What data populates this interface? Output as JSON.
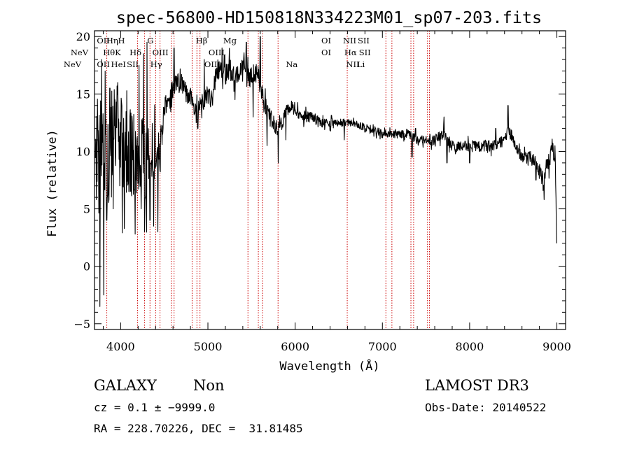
{
  "chart_data": {
    "type": "line",
    "title": "spec-56800-HD150818N334223M01_sp07-203.fits",
    "xlabel": "Wavelength (Å)",
    "ylabel": "Flux (relative)",
    "xlim": [
      3700,
      9100
    ],
    "ylim": [
      -5.5,
      20.5
    ],
    "xticks": [
      "4000",
      "5000",
      "6000",
      "7000",
      "8000",
      "9000"
    ],
    "yticks": [
      "−5",
      "0",
      "5",
      "10",
      "15",
      "20"
    ],
    "grid": false,
    "line_color": "#000000",
    "marker_color": "#cc0000",
    "lines": [
      {
        "label": "NeV",
        "wavelength": 3426,
        "row": 1
      },
      {
        "label": "NeV",
        "wavelength": 3346,
        "row": 2
      },
      {
        "label": "OII",
        "wavelength": 3727,
        "row": 0
      },
      {
        "label": "Hη",
        "wavelength": 3835,
        "row": 0
      },
      {
        "label": "H",
        "wavelength": 3969,
        "row": 0
      },
      {
        "label": "Hθ",
        "wavelength": 3798,
        "row": 1
      },
      {
        "label": "K",
        "wavelength": 3934,
        "row": 1
      },
      {
        "label": "Hδ",
        "wavelength": 4102,
        "row": 1
      },
      {
        "label": "OII",
        "wavelength": 3727,
        "row": 2
      },
      {
        "label": "HeI",
        "wavelength": 3889,
        "row": 2
      },
      {
        "label": "SII",
        "wavelength": 4070,
        "row": 2
      },
      {
        "label": "G",
        "wavelength": 4304,
        "row": 0
      },
      {
        "label": "OIII",
        "wavelength": 4363,
        "row": 1
      },
      {
        "label": "Hγ",
        "wavelength": 4340,
        "row": 2
      },
      {
        "label": "Hβ",
        "wavelength": 4861,
        "row": 0
      },
      {
        "label": "Mg",
        "wavelength": 5175,
        "row": 0
      },
      {
        "label": "OIII",
        "wavelength": 5007,
        "row": 1
      },
      {
        "label": "OIII",
        "wavelength": 4959,
        "row": 2
      },
      {
        "label": "Na",
        "wavelength": 5893,
        "row": 2
      },
      {
        "label": "OI",
        "wavelength": 6300,
        "row": 0
      },
      {
        "label": "NII",
        "wavelength": 6548,
        "row": 0
      },
      {
        "label": "SII",
        "wavelength": 6717,
        "row": 0
      },
      {
        "label": "OI",
        "wavelength": 6300,
        "row": 1
      },
      {
        "label": "Hα",
        "wavelength": 6563,
        "row": 1
      },
      {
        "label": "SII",
        "wavelength": 6731,
        "row": 1
      },
      {
        "label": "NII",
        "wavelength": 6584,
        "row": 2
      },
      {
        "label": "Li",
        "wavelength": 6708,
        "row": 2
      }
    ],
    "marker_wavelengths": [
      3841,
      4193,
      4273,
      4336,
      4402,
      4451,
      4581,
      4612,
      4819,
      4874,
      4909,
      5459,
      5578,
      5626,
      5804,
      6597,
      7040,
      7109,
      7327,
      7358,
      7517,
      7540
    ],
    "anchors": [
      [
        3710,
        7.0
      ],
      [
        3740,
        12.0
      ],
      [
        3790,
        10.0
      ],
      [
        3850,
        9.0
      ],
      [
        3900,
        11.0
      ],
      [
        3950,
        12.5
      ],
      [
        4000,
        11.0
      ],
      [
        4050,
        9.5
      ],
      [
        4100,
        10.5
      ],
      [
        4150,
        10.0
      ],
      [
        4200,
        10.0
      ],
      [
        4250,
        9.5
      ],
      [
        4300,
        9.0
      ],
      [
        4350,
        9.5
      ],
      [
        4400,
        10.0
      ],
      [
        4450,
        9.5
      ],
      [
        4500,
        14.0
      ],
      [
        4550,
        14.0
      ],
      [
        4600,
        15.5
      ],
      [
        4650,
        16.0
      ],
      [
        4700,
        16.0
      ],
      [
        4750,
        15.0
      ],
      [
        4800,
        15.0
      ],
      [
        4850,
        13.5
      ],
      [
        4900,
        14.0
      ],
      [
        4950,
        14.5
      ],
      [
        5000,
        15.0
      ],
      [
        5050,
        14.5
      ],
      [
        5100,
        17.0
      ],
      [
        5150,
        17.5
      ],
      [
        5200,
        16.5
      ],
      [
        5250,
        17.5
      ],
      [
        5300,
        16.5
      ],
      [
        5350,
        17.0
      ],
      [
        5400,
        17.0
      ],
      [
        5450,
        16.5
      ],
      [
        5500,
        16.5
      ],
      [
        5550,
        17.0
      ],
      [
        5600,
        16.0
      ],
      [
        5650,
        14.0
      ],
      [
        5700,
        13.5
      ],
      [
        5750,
        12.5
      ],
      [
        5800,
        12.0
      ],
      [
        5850,
        12.5
      ],
      [
        5900,
        13.5
      ],
      [
        5950,
        14.0
      ],
      [
        6000,
        13.5
      ],
      [
        6100,
        13.0
      ],
      [
        6200,
        13.0
      ],
      [
        6300,
        12.5
      ],
      [
        6400,
        12.5
      ],
      [
        6500,
        12.5
      ],
      [
        6600,
        12.5
      ],
      [
        6700,
        12.5
      ],
      [
        6800,
        12.0
      ],
      [
        6900,
        12.0
      ],
      [
        7000,
        11.5
      ],
      [
        7100,
        11.5
      ],
      [
        7200,
        11.5
      ],
      [
        7300,
        11.5
      ],
      [
        7400,
        11.0
      ],
      [
        7500,
        11.0
      ],
      [
        7600,
        11.0
      ],
      [
        7700,
        11.5
      ],
      [
        7800,
        10.5
      ],
      [
        7900,
        10.5
      ],
      [
        8000,
        10.5
      ],
      [
        8100,
        10.5
      ],
      [
        8200,
        10.5
      ],
      [
        8300,
        10.5
      ],
      [
        8400,
        11.0
      ],
      [
        8450,
        12.0
      ],
      [
        8500,
        11.0
      ],
      [
        8550,
        10.0
      ],
      [
        8600,
        9.5
      ],
      [
        8700,
        9.5
      ],
      [
        8800,
        8.5
      ],
      [
        8850,
        7.0
      ],
      [
        8900,
        9.0
      ],
      [
        8950,
        10.0
      ],
      [
        8980,
        10.0
      ],
      [
        9000,
        1.5
      ]
    ],
    "features": [
      [
        3762,
        -3.5
      ],
      [
        3781,
        18.0
      ],
      [
        3805,
        -2.5
      ],
      [
        3822,
        17.0
      ],
      [
        3840,
        4.0
      ],
      [
        3876,
        15.5
      ],
      [
        3915,
        5.0
      ],
      [
        3935,
        14.5
      ],
      [
        3967,
        16.0
      ],
      [
        3990,
        7.0
      ],
      [
        4096,
        6.5
      ],
      [
        4210,
        17.5
      ],
      [
        4233,
        5.0
      ],
      [
        4262,
        18.5
      ],
      [
        4282,
        6.0
      ],
      [
        4301,
        19.5
      ],
      [
        4336,
        4.0
      ],
      [
        4378,
        3.5
      ],
      [
        4425,
        3.0
      ],
      [
        4612,
        19.0
      ],
      [
        4884,
        12.0
      ],
      [
        4958,
        18.0
      ],
      [
        5162,
        19.0
      ],
      [
        5310,
        14.5
      ],
      [
        5440,
        19.5
      ],
      [
        5517,
        13.0
      ],
      [
        5600,
        20.0
      ],
      [
        5678,
        10.5
      ],
      [
        5807,
        9.0
      ],
      [
        5893,
        11.0
      ],
      [
        6563,
        11.0
      ],
      [
        7340,
        9.5
      ],
      [
        7380,
        12.0
      ],
      [
        7705,
        13.0
      ],
      [
        7740,
        9.0
      ],
      [
        8000,
        9.0
      ],
      [
        8300,
        12.0
      ],
      [
        8440,
        14.0
      ],
      [
        8760,
        7.5
      ],
      [
        8855,
        5.8
      ],
      [
        8935,
        10.5
      ]
    ],
    "noise": [
      [
        3700,
        5.0
      ],
      [
        4000,
        4.0
      ],
      [
        4300,
        3.5
      ],
      [
        4460,
        1.8
      ],
      [
        4500,
        0.9
      ],
      [
        5100,
        0.9
      ],
      [
        5600,
        1.0
      ],
      [
        5900,
        0.5
      ],
      [
        6500,
        0.35
      ],
      [
        7400,
        0.35
      ],
      [
        7600,
        0.45
      ],
      [
        8200,
        0.5
      ],
      [
        8600,
        0.5
      ],
      [
        9000,
        0.9
      ]
    ]
  },
  "info": {
    "object_class": "GALAXY",
    "subclass": "Non",
    "survey": "LAMOST DR3",
    "cz": "cz = 0.1 ± −9999.0",
    "obs_date": "Obs-Date: 20140522",
    "coords": "RA = 228.70226, DEC =  31.81485"
  }
}
